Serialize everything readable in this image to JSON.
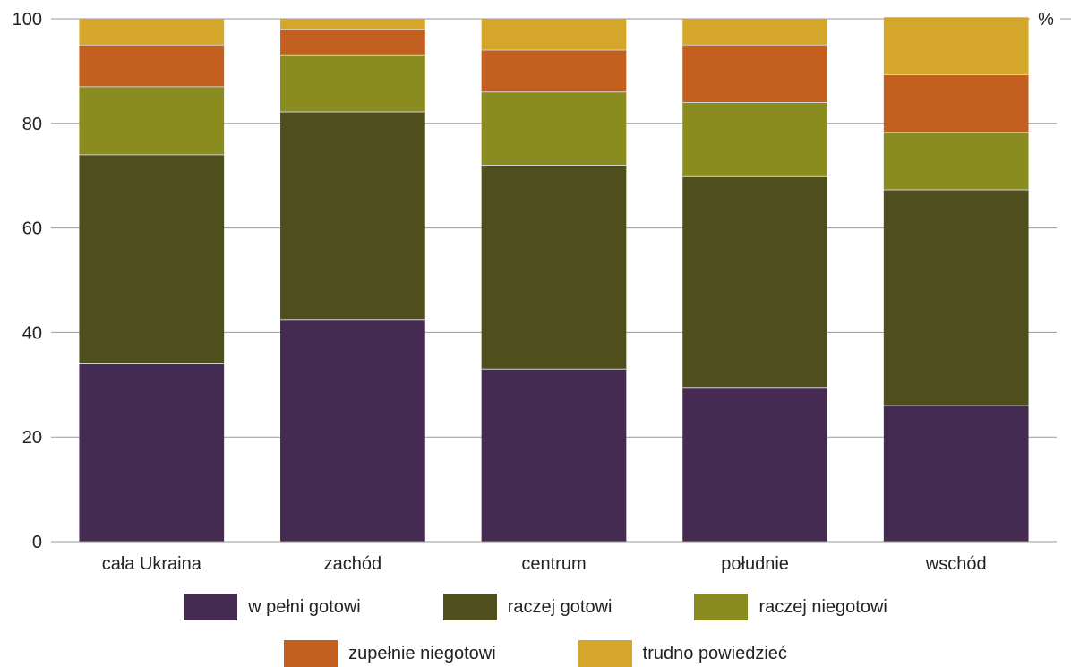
{
  "chart_data": {
    "type": "bar",
    "stacked": true,
    "categories": [
      "cała Ukraina",
      "zachód",
      "centrum",
      "południe",
      "wschód"
    ],
    "series": [
      {
        "name": "w pełni gotowi",
        "color": "#452a51",
        "values": [
          34,
          42.5,
          33,
          29.5,
          26
        ]
      },
      {
        "name": "raczej gotowi",
        "color": "#4f4f1d",
        "values": [
          40,
          39.7,
          39,
          40.3,
          41.3
        ]
      },
      {
        "name": "raczej niegotowi",
        "color": "#8a8c1f",
        "values": [
          13,
          10.9,
          14,
          14.2,
          11
        ]
      },
      {
        "name": "zupełnie niegotowi",
        "color": "#c4601f",
        "values": [
          8,
          4.9,
          8,
          11,
          11
        ]
      },
      {
        "name": "trudno powiedzieć",
        "color": "#d4a72a",
        "values": [
          5,
          2,
          6,
          5,
          11
        ]
      }
    ],
    "ylim": [
      0,
      100
    ],
    "yticks": [
      0,
      20,
      40,
      60,
      80,
      100
    ],
    "yunit": "%",
    "grid": true,
    "legend_position": "bottom"
  }
}
